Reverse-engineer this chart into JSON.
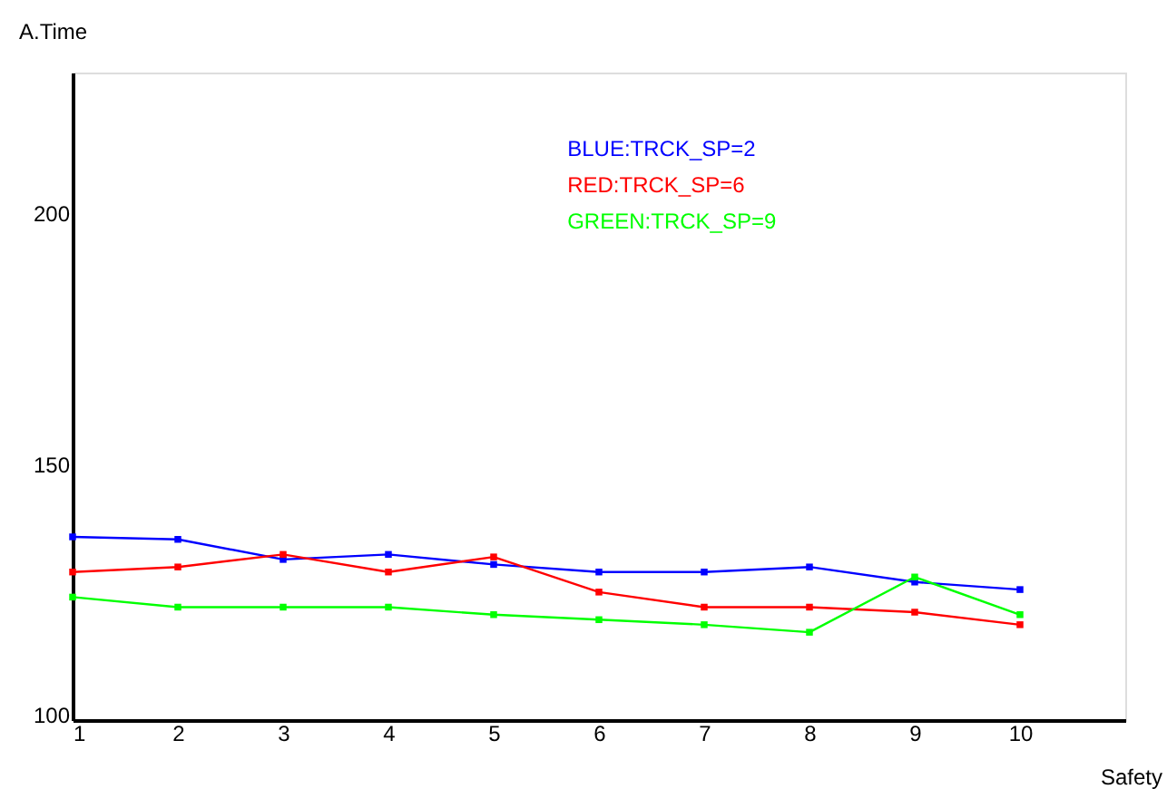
{
  "chart_data": {
    "type": "line",
    "xlabel": "Safety",
    "ylabel": "A.Time",
    "x": [
      1,
      2,
      3,
      4,
      5,
      6,
      7,
      8,
      9,
      10
    ],
    "xlim": [
      1,
      11
    ],
    "xticks": [
      1,
      2,
      3,
      4,
      5,
      6,
      7,
      8,
      9,
      10
    ],
    "ylim": [
      99,
      228
    ],
    "yticks": [
      100,
      150,
      200
    ],
    "grid": false,
    "legend": "top",
    "marker": "square",
    "line_style": "solid",
    "series": [
      {
        "name": "BLUE:TRCK_SP=2",
        "color": "#0000ff",
        "values": [
          135.5,
          135,
          131,
          132,
          130,
          128.5,
          128.5,
          129.5,
          126.5,
          125
        ]
      },
      {
        "name": "RED:TRCK_SP=6",
        "color": "#ff0000",
        "values": [
          128.5,
          129.5,
          132,
          128.5,
          131.5,
          124.5,
          121.5,
          121.5,
          120.5,
          118
        ]
      },
      {
        "name": "GREEN:TRCK_SP=9",
        "color": "#00ff00",
        "values": [
          123.5,
          121.5,
          121.5,
          121.5,
          120,
          119,
          118,
          116.5,
          127.5,
          120
        ]
      }
    ]
  }
}
